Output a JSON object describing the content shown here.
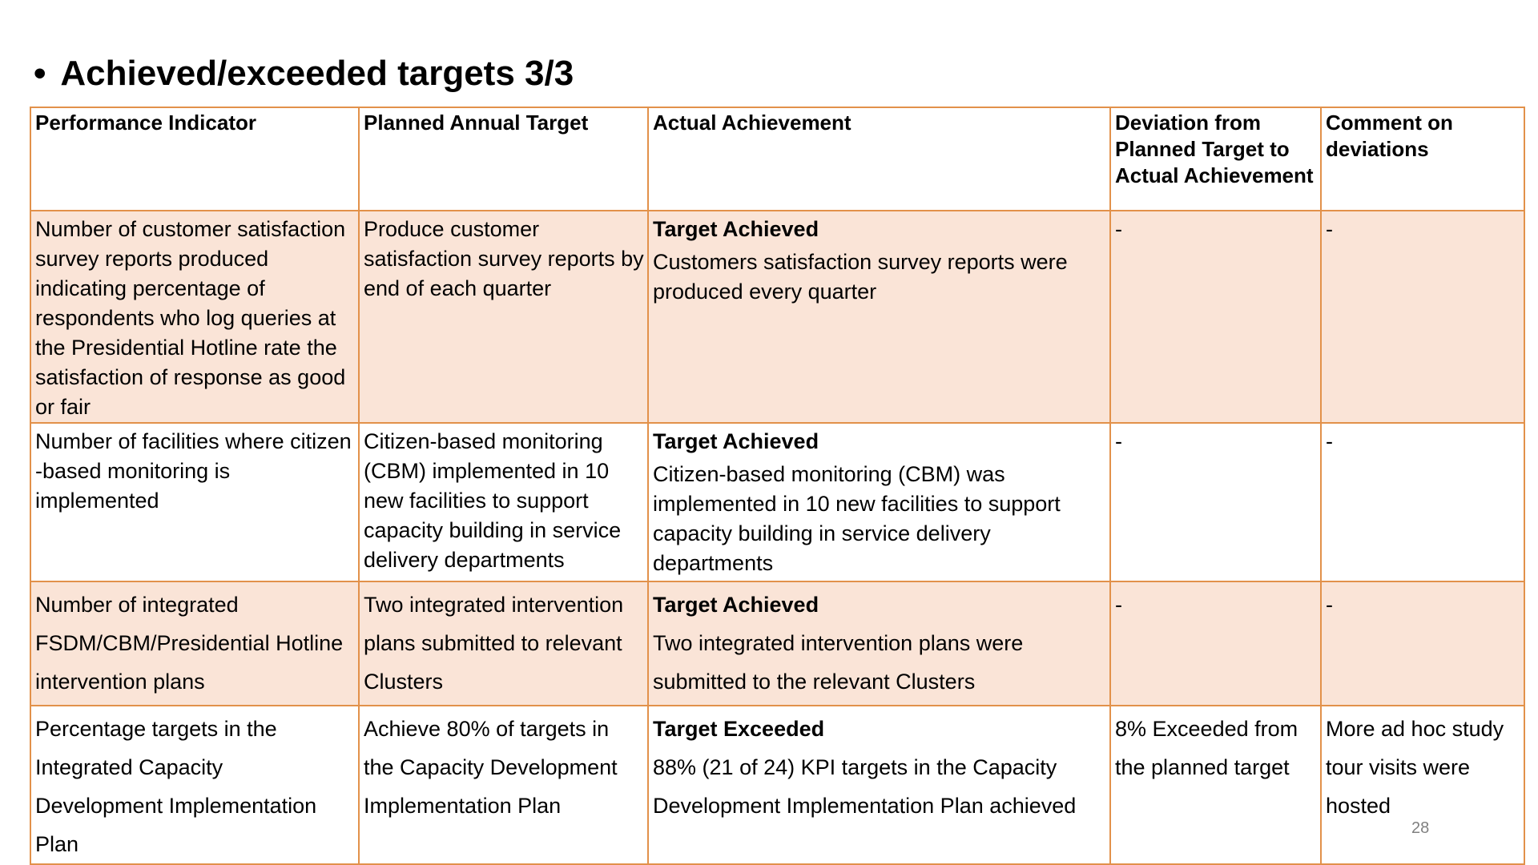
{
  "title": {
    "bullet": "•",
    "text": "Achieved/exceeded targets 3/3"
  },
  "table": {
    "headers": [
      "Performance Indicator",
      "Planned Annual Target",
      "Actual Achievement",
      "Deviation from Planned Target to Actual Achievement",
      "Comment on deviations"
    ],
    "rows": [
      {
        "indicator": "Number of customer satisfaction survey reports produced indicating percentage of respondents who log queries at the Presidential Hotline rate the satisfaction of response as good or fair",
        "target": "Produce customer satisfaction survey reports by end of each quarter",
        "status": "Target Achieved",
        "achievement": "Customers satisfaction survey reports were produced every quarter",
        "deviation": "-",
        "comment": "-"
      },
      {
        "indicator": "Number of facilities where citizen -based monitoring is implemented",
        "target": "Citizen-based monitoring (CBM) implemented in 10 new facilities to support capacity building in service delivery departments",
        "status": "Target Achieved",
        "achievement": "Citizen-based monitoring (CBM) was implemented in 10 new facilities to support capacity building in service delivery departments",
        "deviation": "-",
        "comment": "-"
      },
      {
        "indicator": "Number of integrated FSDM/CBM/Presidential Hotline intervention plans",
        "target": "Two integrated intervention plans submitted to relevant Clusters",
        "status": "Target Achieved",
        "achievement": "Two integrated intervention plans were submitted to the relevant Clusters",
        "deviation": "-",
        "comment": "-"
      },
      {
        "indicator": "Percentage targets in the Integrated Capacity Development Implementation Plan",
        "target": "Achieve 80% of targets in the Capacity Development Implementation Plan",
        "status": "Target Exceeded",
        "achievement": "88% (21 of 24) KPI targets in the Capacity Development Implementation Plan achieved",
        "deviation": "8% Exceeded from the planned target",
        "comment": "More ad hoc study tour visits were hosted"
      }
    ]
  },
  "page_number": "28",
  "colors": {
    "border": "#e2914a",
    "shaded_row": "#fae4d7",
    "page_number": "#808080"
  }
}
